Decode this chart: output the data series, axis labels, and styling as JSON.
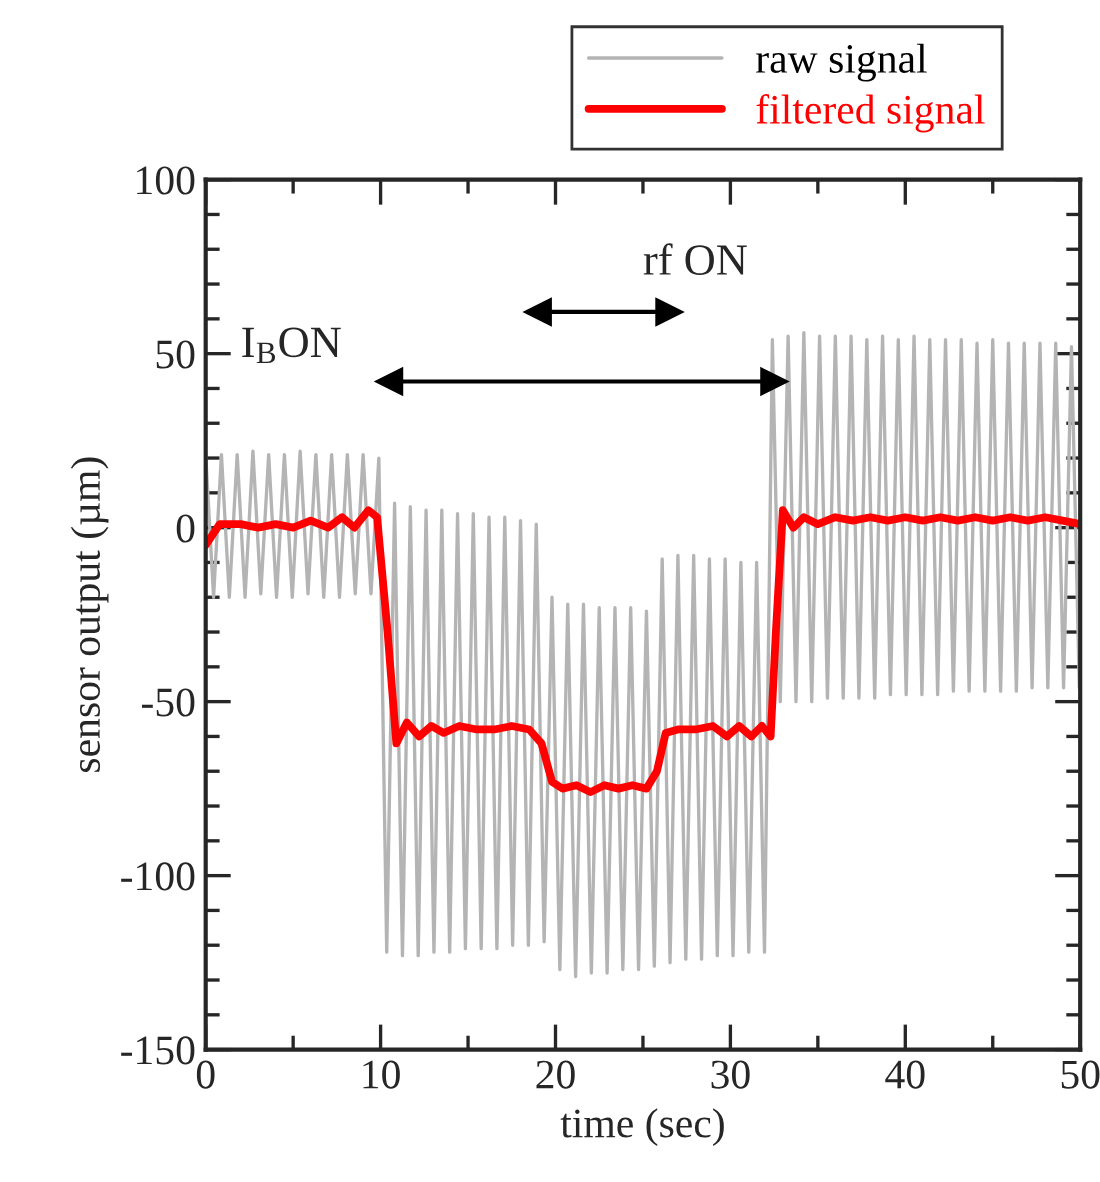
{
  "chart_data": {
    "type": "line",
    "xlabel": "time (sec)",
    "ylabel": "sensor output (µm)",
    "xlim": [
      0,
      50
    ],
    "ylim": [
      -150,
      100
    ],
    "xticks": [
      0,
      10,
      20,
      30,
      40,
      50
    ],
    "yticks": [
      -150,
      -100,
      -50,
      0,
      50,
      100
    ],
    "legend": "top right",
    "grid": false,
    "series": [
      {
        "name": "raw signal",
        "color": "#b4b4b4",
        "x": [
          0,
          0.45,
          0.9,
          1.35,
          1.8,
          2.25,
          2.7,
          3.15,
          3.6,
          4.05,
          4.5,
          4.95,
          5.4,
          5.85,
          6.3,
          6.75,
          7.2,
          7.65,
          8.1,
          8.55,
          9.0,
          9.45,
          9.9,
          10.35,
          10.8,
          11.25,
          11.7,
          12.15,
          12.6,
          13.05,
          13.5,
          13.95,
          14.4,
          14.85,
          15.3,
          15.75,
          16.2,
          16.65,
          17.1,
          17.55,
          18.0,
          18.45,
          18.9,
          19.35,
          19.8,
          20.25,
          20.7,
          21.15,
          21.6,
          22.05,
          22.5,
          22.95,
          23.4,
          23.85,
          24.3,
          24.75,
          25.2,
          25.65,
          26.1,
          26.55,
          27.0,
          27.45,
          27.9,
          28.35,
          28.8,
          29.25,
          29.7,
          30.15,
          30.6,
          31.05,
          31.5,
          31.95,
          32.4,
          32.85,
          33.3,
          33.75,
          34.2,
          34.65,
          35.1,
          35.55,
          36.0,
          36.45,
          36.9,
          37.35,
          37.8,
          38.25,
          38.7,
          39.15,
          39.6,
          40.05,
          40.5,
          40.95,
          41.4,
          41.85,
          42.3,
          42.75,
          43.2,
          43.65,
          44.1,
          44.55,
          45.0,
          45.45,
          45.9,
          46.35,
          46.8,
          47.25,
          47.7,
          48.15,
          48.6,
          49.05,
          49.5,
          49.95
        ],
        "values": [
          21,
          -20,
          21,
          -20,
          21,
          -20,
          22,
          -19,
          21,
          -20,
          21,
          -20,
          22,
          -19,
          21,
          -20,
          21,
          -20,
          21,
          -19,
          21,
          -19,
          20,
          -122,
          7,
          -123,
          6,
          -123,
          5,
          -122,
          5,
          -122,
          4,
          -121,
          4,
          -121,
          3,
          -121,
          3,
          -120,
          2,
          -120,
          1,
          -119,
          -20,
          -127,
          -22,
          -129,
          -22,
          -128,
          -23,
          -128,
          -23,
          -127,
          -23,
          -127,
          -24,
          -126,
          -9,
          -125,
          -8,
          -124,
          -8,
          -124,
          -9,
          -123,
          -9,
          -123,
          -10,
          -122,
          -10,
          -122,
          54,
          -50,
          55,
          -50,
          56,
          -50,
          55,
          -49,
          55,
          -49,
          55,
          -49,
          54,
          -49,
          55,
          -48,
          54,
          -48,
          55,
          -48,
          54,
          -48,
          54,
          -47,
          54,
          -47,
          53,
          -47,
          54,
          -47,
          53,
          -47,
          53,
          -46,
          53,
          -46,
          53,
          -46,
          52,
          -46
        ]
      },
      {
        "name": "filtered signal",
        "color": "#ff0000",
        "x": [
          0,
          0.8,
          2,
          3,
          4,
          5,
          6,
          7,
          7.8,
          8.5,
          9.3,
          9.8,
          10.4,
          10.9,
          11.5,
          12.2,
          12.9,
          13.6,
          14.5,
          15.5,
          16.5,
          17.5,
          18.5,
          19.2,
          19.8,
          20.4,
          21.2,
          22,
          22.8,
          23.6,
          24.4,
          25.2,
          25.8,
          26.3,
          27,
          28,
          29,
          29.8,
          30.5,
          31.2,
          31.8,
          32.3,
          32.6,
          33,
          33.6,
          34.2,
          35,
          36,
          37,
          38,
          39,
          40,
          41,
          42,
          43,
          44,
          45,
          46,
          47,
          48,
          49,
          50
        ],
        "values": [
          -5,
          1,
          1,
          0,
          1,
          0,
          2,
          0,
          3,
          0,
          5,
          3,
          -30,
          -62,
          -56,
          -60,
          -57,
          -59,
          -57,
          -58,
          -58,
          -57,
          -58,
          -62,
          -73,
          -75,
          -74,
          -76,
          -74,
          -75,
          -74,
          -75,
          -70,
          -59,
          -58,
          -58,
          -57,
          -60,
          -57,
          -60,
          -57,
          -60,
          -30,
          5,
          0,
          3,
          1,
          3,
          2,
          3,
          2,
          3,
          2,
          3,
          2,
          3,
          2,
          3,
          2,
          3,
          2,
          1
        ]
      },
      {
        "type": "line",
        "marker": "triangle",
        "color": "#000000",
        "x": [
          10.5,
          32.5
        ],
        "values": [
          42,
          42
        ]
      },
      {
        "type": "line",
        "marker": "triangle",
        "color": "#000000",
        "x": [
          19,
          26.5
        ],
        "values": [
          62,
          62
        ]
      }
    ],
    "annotations": [
      "I$_{B}$ON",
      "rf ON"
    ]
  }
}
